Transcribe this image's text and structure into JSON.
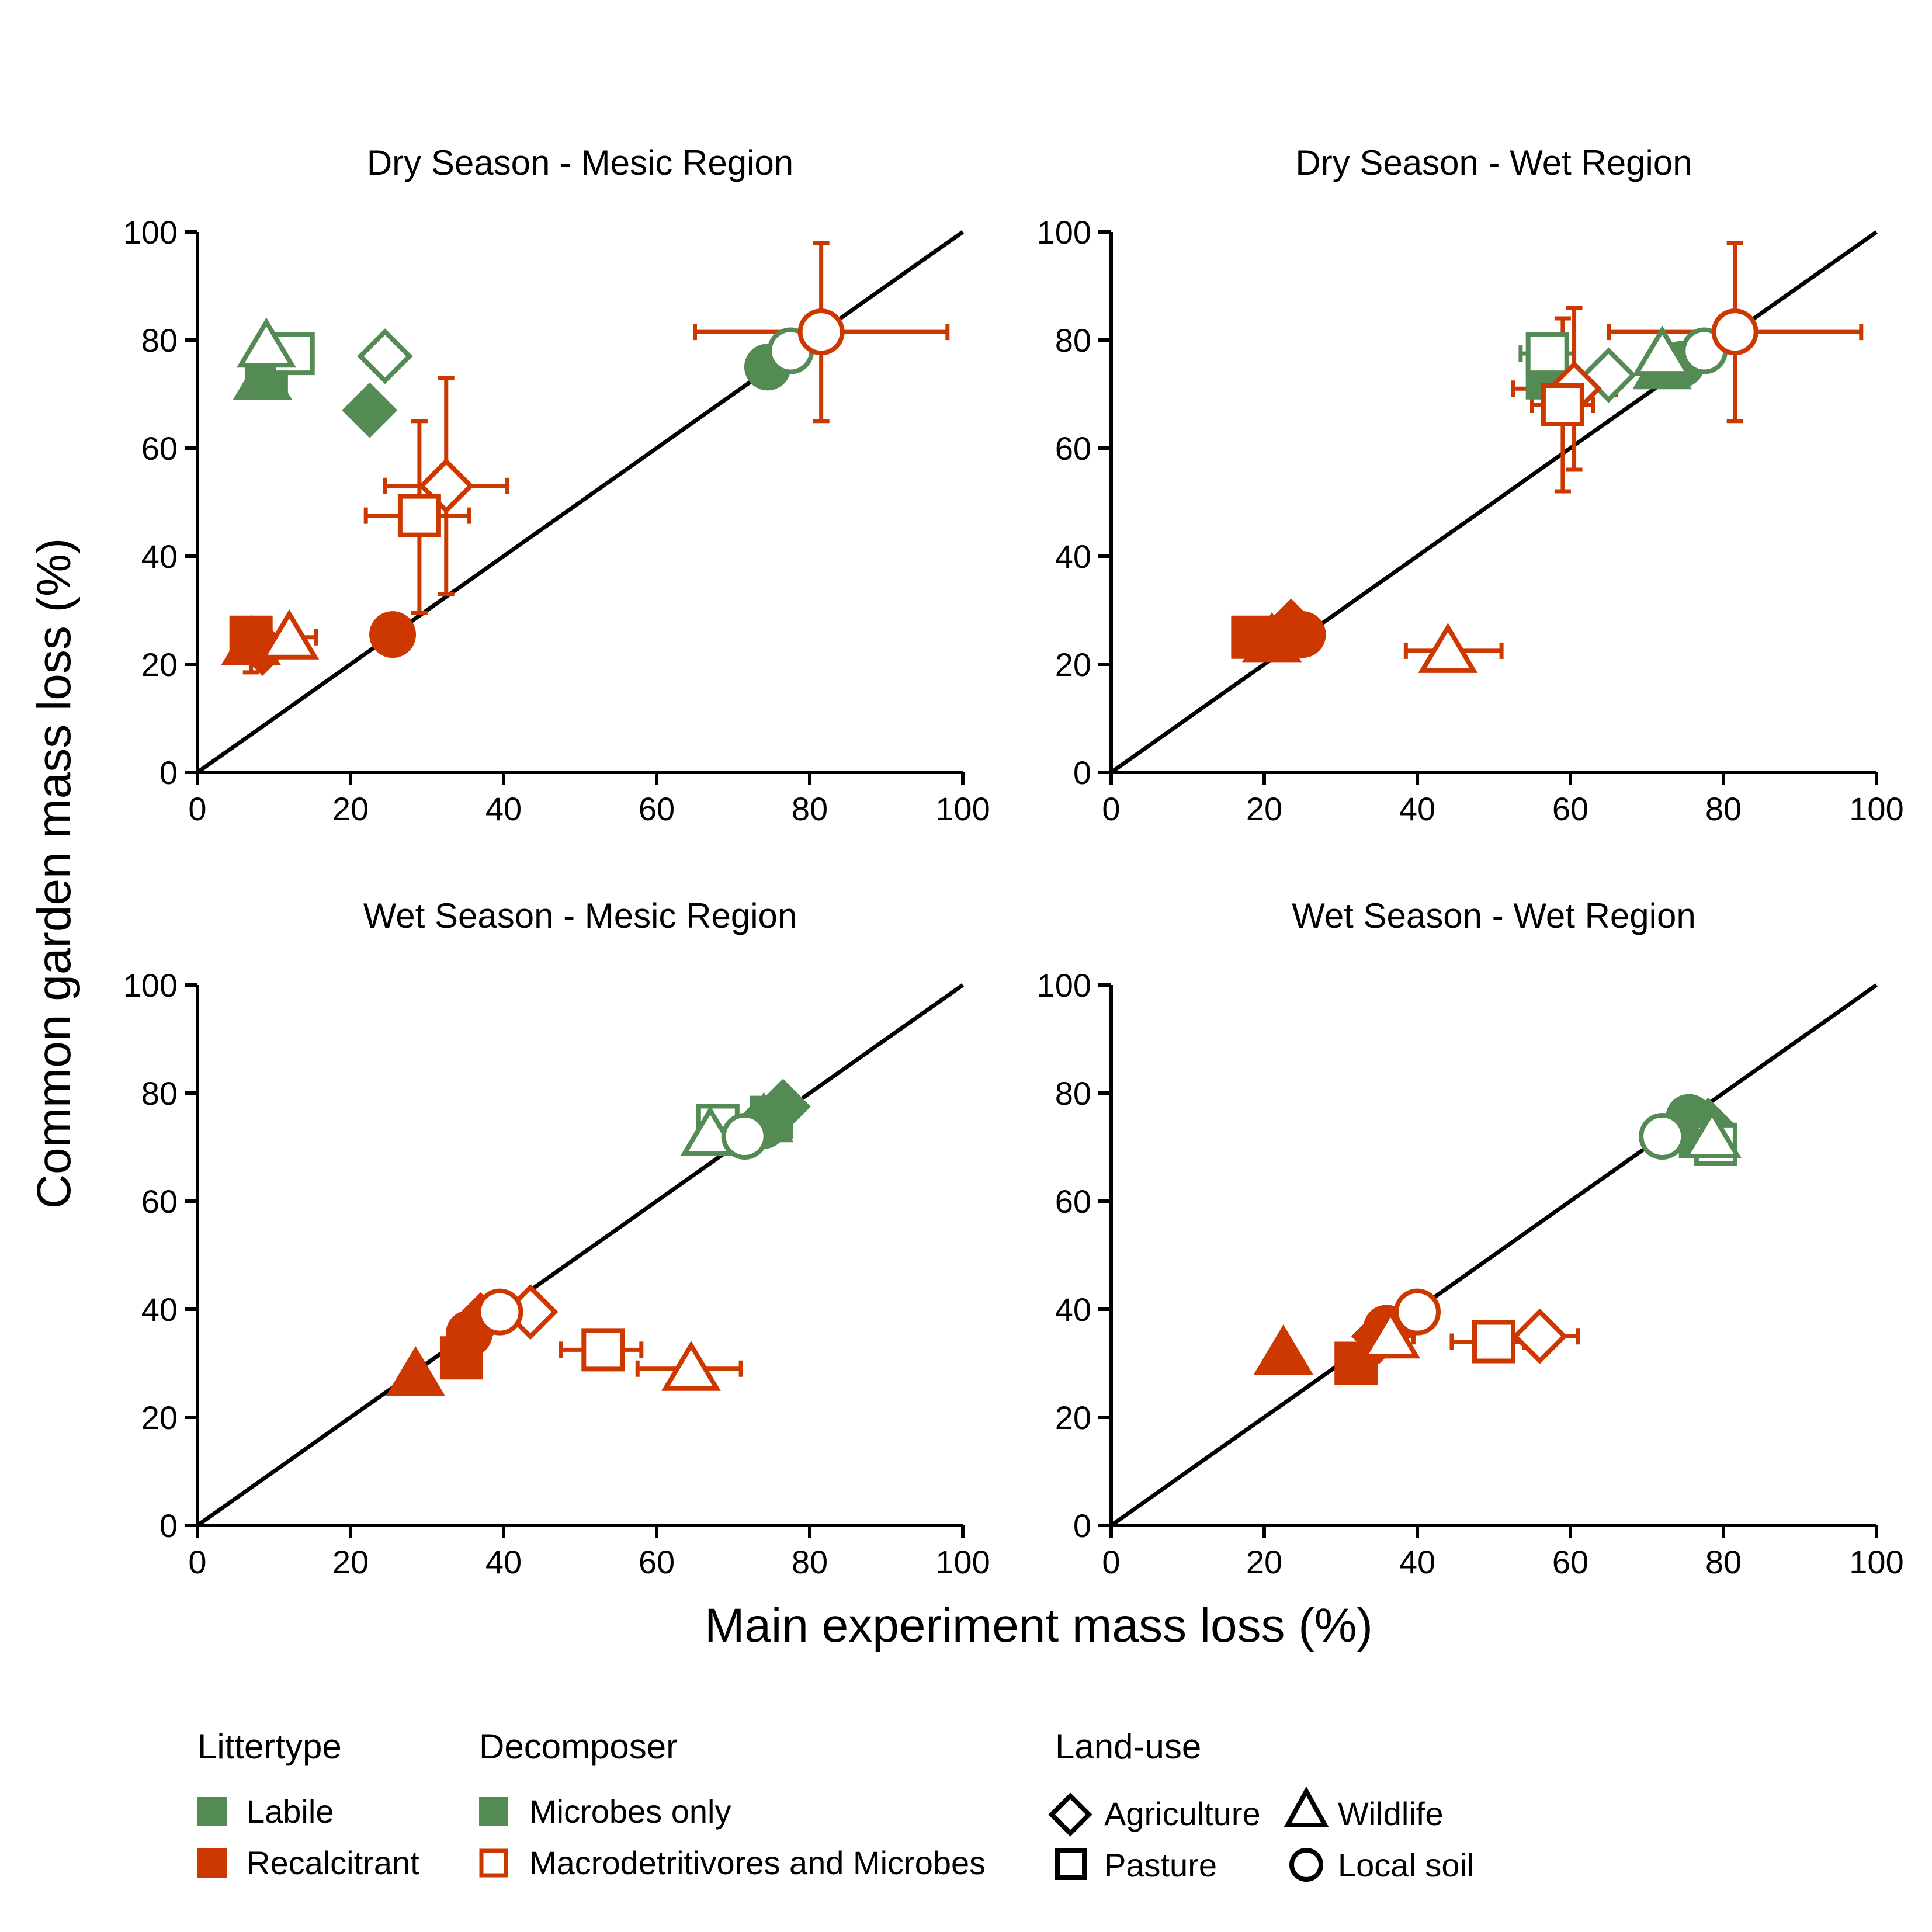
{
  "colors": {
    "labile": "#548b54",
    "recalcitrant": "#cd3700",
    "axis": "#000000"
  },
  "chart_data": {
    "type": "scatter",
    "xlabel": "Main experiment mass loss (%)",
    "ylabel": "Common garden mass loss (%)",
    "xlim": [
      0,
      100
    ],
    "ylim": [
      0,
      100
    ],
    "x_ticks": [
      "0",
      "20",
      "40",
      "60",
      "80",
      "100"
    ],
    "y_ticks": [
      "0",
      "20",
      "40",
      "60",
      "80",
      "100"
    ],
    "reference_line": "1:1",
    "grid": false,
    "legend_position": "bottom",
    "panels": [
      {
        "title": "Dry Season - Mesic Region",
        "points": [
          {
            "litter": "labile",
            "decomposer": "microbes",
            "landuse": "wildlife",
            "x": 8.5,
            "y": 73
          },
          {
            "litter": "labile",
            "decomposer": "microbes",
            "landuse": "pasture",
            "x": 9,
            "y": 73
          },
          {
            "litter": "labile",
            "decomposer": "microbes",
            "landuse": "agriculture",
            "x": 22.5,
            "y": 67
          },
          {
            "litter": "labile",
            "decomposer": "microbes",
            "landuse": "local",
            "x": 74.5,
            "y": 75
          },
          {
            "litter": "labile",
            "decomposer": "macro",
            "landuse": "pasture",
            "x": 12.5,
            "y": 77.5
          },
          {
            "litter": "labile",
            "decomposer": "macro",
            "landuse": "wildlife",
            "x": 9,
            "y": 79
          },
          {
            "litter": "labile",
            "decomposer": "macro",
            "landuse": "agriculture",
            "x": 24.5,
            "y": 77
          },
          {
            "litter": "labile",
            "decomposer": "macro",
            "landuse": "local",
            "x": 77.5,
            "y": 78
          },
          {
            "litter": "recalcitrant",
            "decomposer": "microbes",
            "landuse": "wildlife",
            "x": 7,
            "y": 24
          },
          {
            "litter": "recalcitrant",
            "decomposer": "microbes",
            "landuse": "pasture",
            "x": 7,
            "y": 25,
            "yerr": [
              18.5,
              26
            ]
          },
          {
            "litter": "recalcitrant",
            "decomposer": "microbes",
            "landuse": "agriculture",
            "x": 8.5,
            "y": 23
          },
          {
            "litter": "recalcitrant",
            "decomposer": "microbes",
            "landuse": "local",
            "x": 25.5,
            "y": 25.5
          },
          {
            "litter": "recalcitrant",
            "decomposer": "macro",
            "landuse": "wildlife",
            "x": 12,
            "y": 25,
            "xerr": [
              12,
              15.5
            ]
          },
          {
            "litter": "recalcitrant",
            "decomposer": "macro",
            "landuse": "agriculture",
            "x": 32.5,
            "y": 53,
            "xerr": [
              24.5,
              40.5
            ],
            "yerr": [
              33,
              73
            ]
          },
          {
            "litter": "recalcitrant",
            "decomposer": "macro",
            "landuse": "pasture",
            "x": 29,
            "y": 47.5,
            "xerr": [
              22,
              35.5
            ],
            "yerr": [
              29.5,
              65
            ]
          },
          {
            "litter": "recalcitrant",
            "decomposer": "macro",
            "landuse": "local",
            "x": 81.5,
            "y": 81.5,
            "xerr": [
              65,
              98
            ],
            "yerr": [
              65,
              98
            ]
          }
        ]
      },
      {
        "title": "Dry Season - Wet Region",
        "points": [
          {
            "litter": "labile",
            "decomposer": "microbes",
            "landuse": "pasture",
            "x": 57,
            "y": 73
          },
          {
            "litter": "labile",
            "decomposer": "microbes",
            "landuse": "wildlife",
            "x": 72,
            "y": 75
          },
          {
            "litter": "labile",
            "decomposer": "microbes",
            "landuse": "local",
            "x": 74.5,
            "y": 75.5
          },
          {
            "litter": "labile",
            "decomposer": "macro",
            "landuse": "pasture",
            "x": 57,
            "y": 77.5,
            "xerr": [
              53.5,
              60.5
            ],
            "yerr": [
              73,
              81
            ]
          },
          {
            "litter": "labile",
            "decomposer": "macro",
            "landuse": "agriculture",
            "x": 65,
            "y": 73.5
          },
          {
            "litter": "labile",
            "decomposer": "macro",
            "landuse": "wildlife",
            "x": 72,
            "y": 77.5
          },
          {
            "litter": "labile",
            "decomposer": "macro",
            "landuse": "local",
            "x": 77.5,
            "y": 78
          },
          {
            "litter": "recalcitrant",
            "decomposer": "microbes",
            "landuse": "pasture",
            "x": 18.5,
            "y": 25
          },
          {
            "litter": "recalcitrant",
            "decomposer": "microbes",
            "landuse": "agriculture",
            "x": 23.5,
            "y": 27
          },
          {
            "litter": "recalcitrant",
            "decomposer": "microbes",
            "landuse": "local",
            "x": 25,
            "y": 25.5
          },
          {
            "litter": "recalcitrant",
            "decomposer": "microbes",
            "landuse": "wildlife",
            "x": 21,
            "y": 24.5
          },
          {
            "litter": "recalcitrant",
            "decomposer": "macro",
            "landuse": "wildlife",
            "x": 44,
            "y": 22.5,
            "xerr": [
              38.5,
              51
            ]
          },
          {
            "litter": "recalcitrant",
            "decomposer": "macro",
            "landuse": "agriculture",
            "x": 60.5,
            "y": 71,
            "xerr": [
              52.5,
              66
            ],
            "yerr": [
              56,
              86
            ]
          },
          {
            "litter": "recalcitrant",
            "decomposer": "macro",
            "landuse": "pasture",
            "x": 59,
            "y": 68,
            "xerr": [
              55,
              63
            ],
            "yerr": [
              52,
              84
            ]
          },
          {
            "litter": "recalcitrant",
            "decomposer": "macro",
            "landuse": "local",
            "x": 81.5,
            "y": 81.5,
            "xerr": [
              65,
              98
            ],
            "yerr": [
              65,
              98
            ]
          }
        ]
      },
      {
        "title": "Wet Season - Mesic Region",
        "points": [
          {
            "litter": "labile",
            "decomposer": "microbes",
            "landuse": "agriculture",
            "x": 76.5,
            "y": 77.5
          },
          {
            "litter": "labile",
            "decomposer": "microbes",
            "landuse": "pasture",
            "x": 75,
            "y": 75.5
          },
          {
            "litter": "labile",
            "decomposer": "microbes",
            "landuse": "wildlife",
            "x": 74,
            "y": 75
          },
          {
            "litter": "labile",
            "decomposer": "microbes",
            "landuse": "local",
            "x": 74,
            "y": 74
          },
          {
            "litter": "labile",
            "decomposer": "macro",
            "landuse": "pasture",
            "x": 68,
            "y": 74
          },
          {
            "litter": "labile",
            "decomposer": "macro",
            "landuse": "wildlife",
            "x": 67,
            "y": 72.5
          },
          {
            "litter": "labile",
            "decomposer": "macro",
            "landuse": "local",
            "x": 71.5,
            "y": 72
          },
          {
            "litter": "recalcitrant",
            "decomposer": "microbes",
            "landuse": "wildlife",
            "x": 28.5,
            "y": 28
          },
          {
            "litter": "recalcitrant",
            "decomposer": "microbes",
            "landuse": "pasture",
            "x": 34.5,
            "y": 31
          },
          {
            "litter": "recalcitrant",
            "decomposer": "microbes",
            "landuse": "local",
            "x": 35.5,
            "y": 35.5
          },
          {
            "litter": "recalcitrant",
            "decomposer": "microbes",
            "landuse": "agriculture",
            "x": 37,
            "y": 38
          },
          {
            "litter": "recalcitrant",
            "decomposer": "macro",
            "landuse": "agriculture",
            "x": 43.5,
            "y": 39.5
          },
          {
            "litter": "recalcitrant",
            "decomposer": "macro",
            "landuse": "local",
            "x": 39.5,
            "y": 39.5
          },
          {
            "litter": "recalcitrant",
            "decomposer": "macro",
            "landuse": "pasture",
            "x": 53,
            "y": 32.5,
            "xerr": [
              47.5,
              58
            ]
          },
          {
            "litter": "recalcitrant",
            "decomposer": "macro",
            "landuse": "wildlife",
            "x": 64.5,
            "y": 29,
            "xerr": [
              57.5,
              71
            ]
          }
        ]
      },
      {
        "title": "Wet Season - Wet Region",
        "points": [
          {
            "litter": "labile",
            "decomposer": "microbes",
            "landuse": "local",
            "x": 75.5,
            "y": 75.5
          },
          {
            "litter": "labile",
            "decomposer": "microbes",
            "landuse": "agriculture",
            "x": 78,
            "y": 74
          },
          {
            "litter": "labile",
            "decomposer": "microbes",
            "landuse": "wildlife",
            "x": 78,
            "y": 72
          },
          {
            "litter": "labile",
            "decomposer": "microbes",
            "landuse": "pasture",
            "x": 77,
            "y": 72
          },
          {
            "litter": "labile",
            "decomposer": "macro",
            "landuse": "pasture",
            "x": 79,
            "y": 70.5
          },
          {
            "litter": "labile",
            "decomposer": "macro",
            "landuse": "wildlife",
            "x": 78.5,
            "y": 72
          },
          {
            "litter": "labile",
            "decomposer": "macro",
            "landuse": "local",
            "x": 72,
            "y": 72
          },
          {
            "litter": "recalcitrant",
            "decomposer": "microbes",
            "landuse": "wildlife",
            "x": 22.5,
            "y": 32
          },
          {
            "litter": "recalcitrant",
            "decomposer": "microbes",
            "landuse": "pasture",
            "x": 32,
            "y": 30
          },
          {
            "litter": "recalcitrant",
            "decomposer": "microbes",
            "landuse": "agriculture",
            "x": 35,
            "y": 35
          },
          {
            "litter": "recalcitrant",
            "decomposer": "microbes",
            "landuse": "local",
            "x": 36,
            "y": 36.5
          },
          {
            "litter": "recalcitrant",
            "decomposer": "macro",
            "landuse": "wildlife",
            "x": 36.5,
            "y": 35,
            "xerr": [
              34,
              39.5
            ]
          },
          {
            "litter": "recalcitrant",
            "decomposer": "macro",
            "landuse": "local",
            "x": 40,
            "y": 39.5
          },
          {
            "litter": "recalcitrant",
            "decomposer": "macro",
            "landuse": "pasture",
            "x": 50,
            "y": 34,
            "xerr": [
              44.5,
              54
            ]
          },
          {
            "litter": "recalcitrant",
            "decomposer": "macro",
            "landuse": "agriculture",
            "x": 56,
            "y": 35,
            "xerr": [
              52.5,
              61
            ]
          }
        ]
      }
    ],
    "legend": {
      "litter_title": "Littertype",
      "litter_items": [
        "Labile",
        "Recalcitrant"
      ],
      "decomposer_title": "Decomposer",
      "decomposer_items": [
        "Microbes only",
        "Macrodetritivores and Microbes"
      ],
      "landuse_title": "Land-use",
      "landuse_items": [
        "Agriculture",
        "Wildlife",
        "Pasture",
        "Local soil"
      ]
    }
  }
}
